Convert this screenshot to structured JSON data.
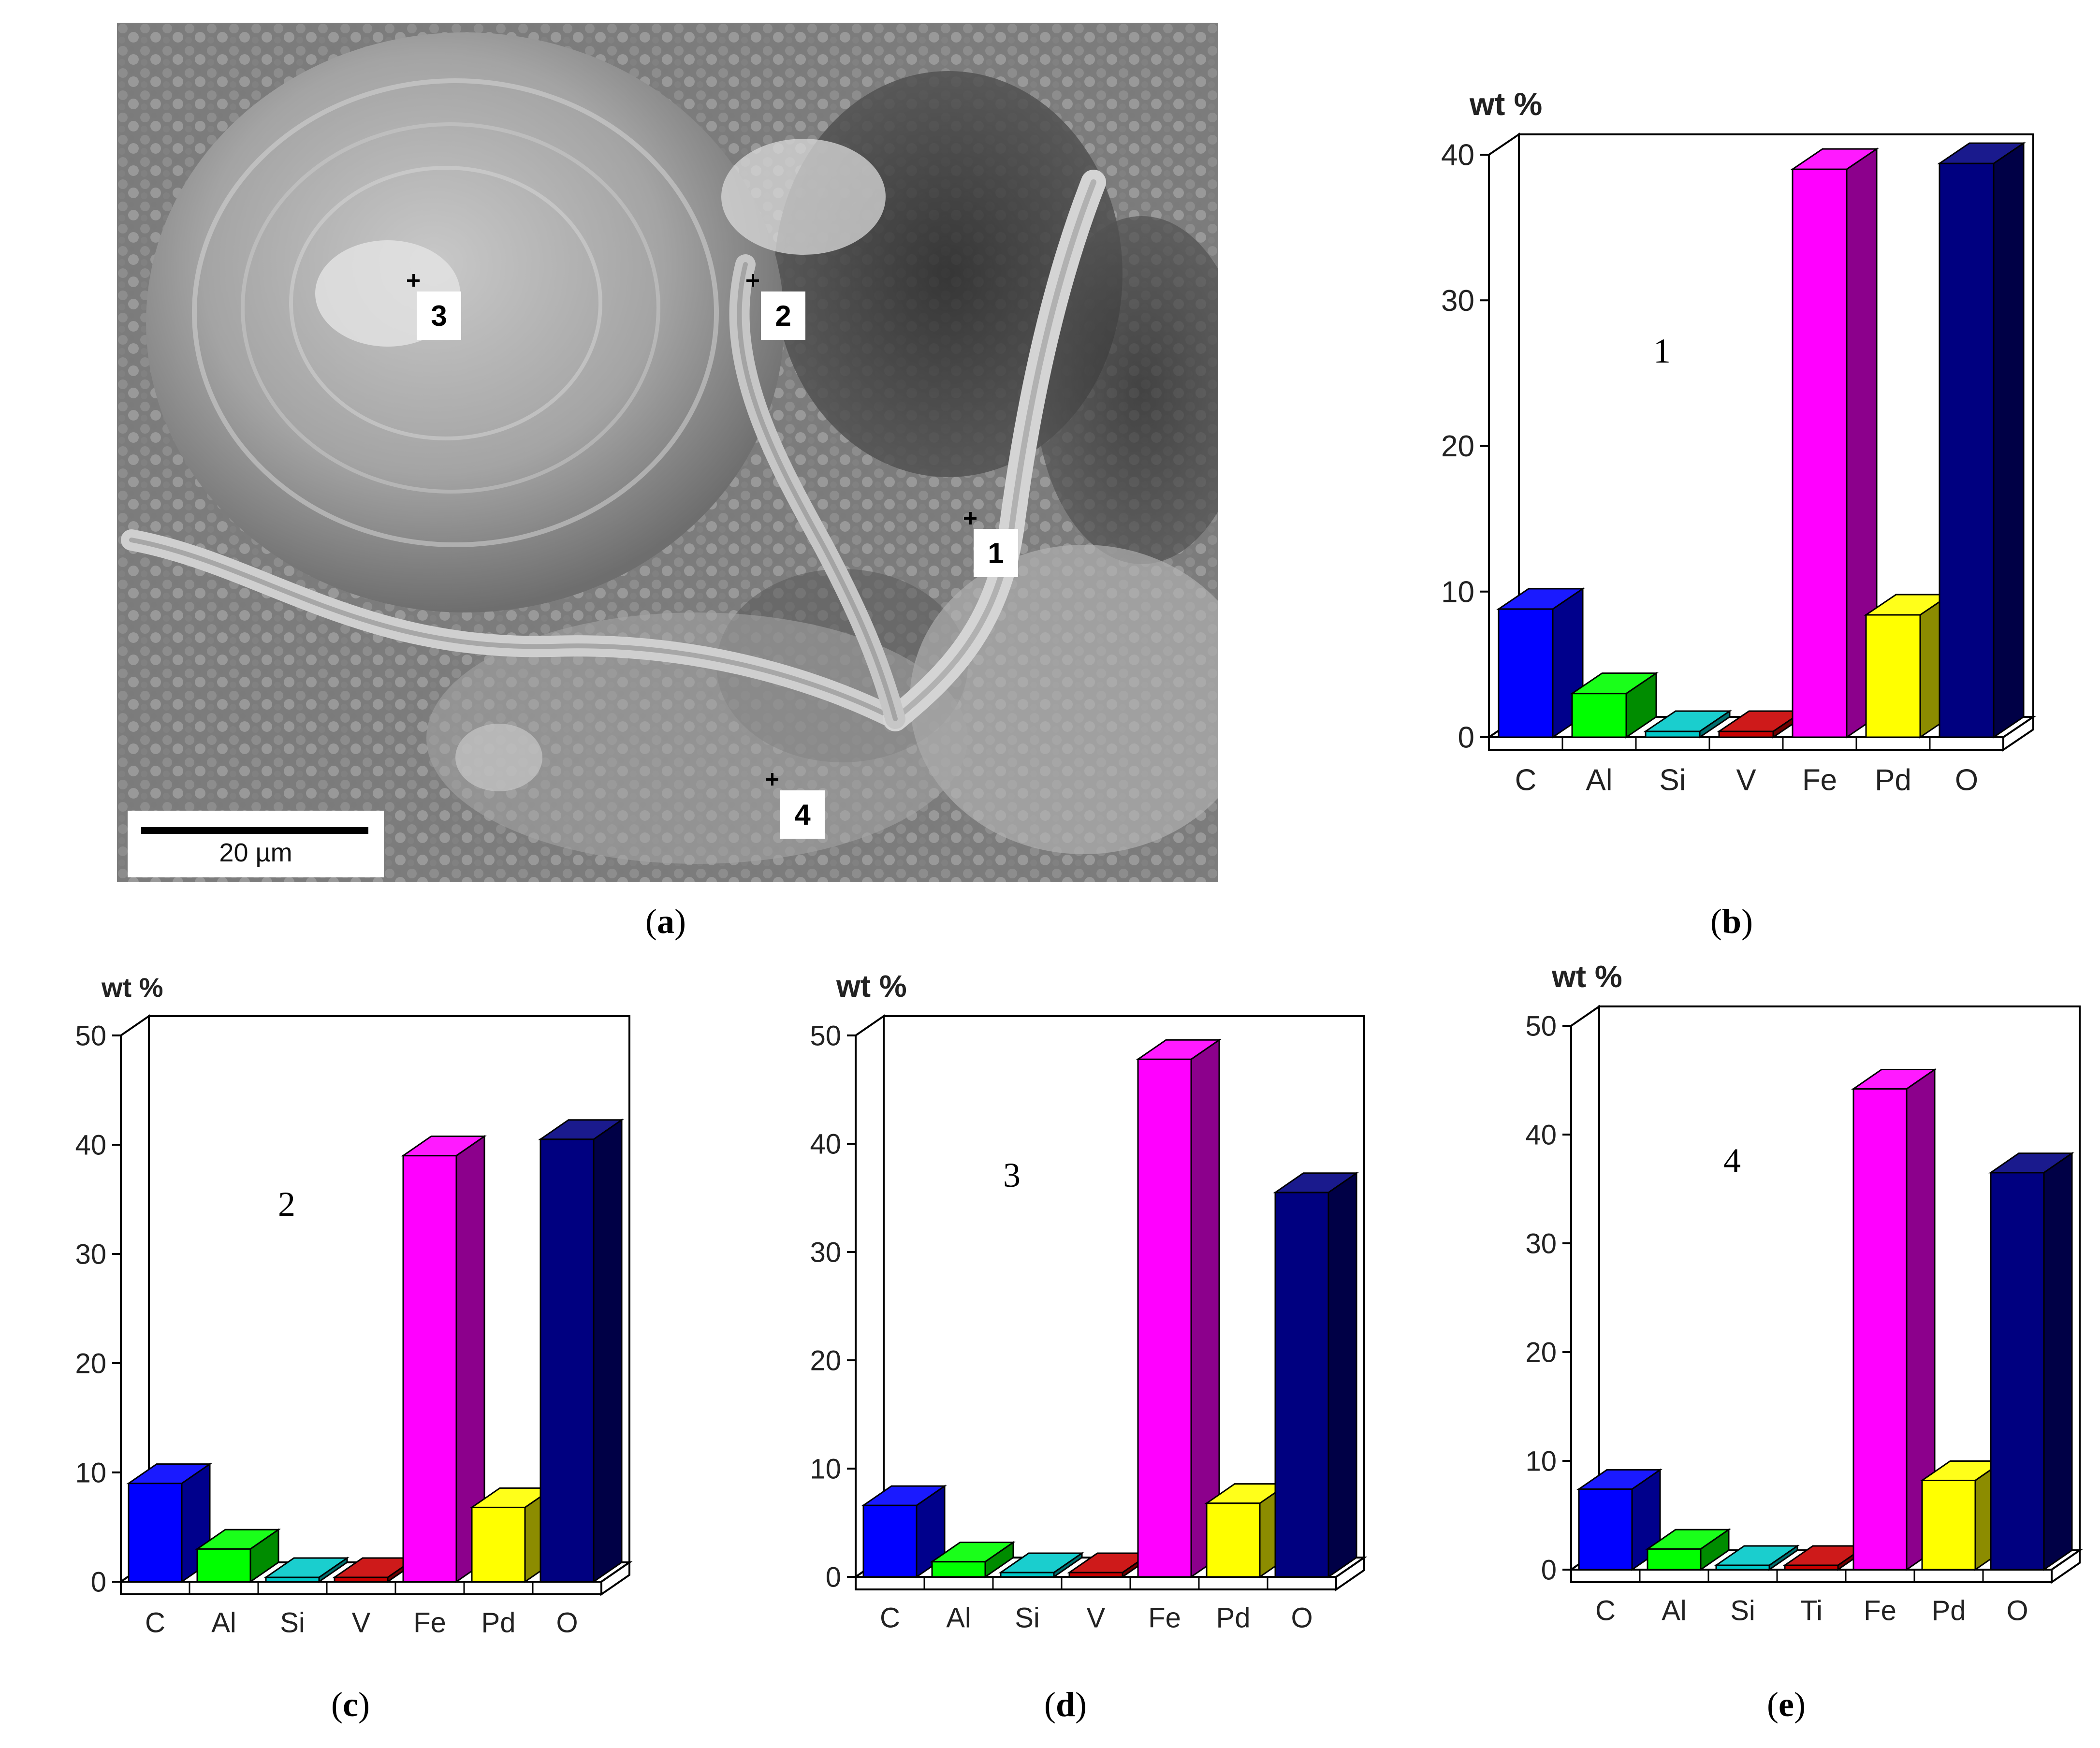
{
  "figure": {
    "panel_labels": [
      "a",
      "b",
      "c",
      "d",
      "e"
    ],
    "sem_image": {
      "scale_bar_label": "20 µm",
      "markers": [
        "1",
        "2",
        "3",
        "4"
      ]
    }
  },
  "chart_data": [
    {
      "panel": "b",
      "type": "bar",
      "ylabel": "wt %",
      "annotation": "1",
      "ylim": [
        0,
        40
      ],
      "yticks": [
        0,
        10,
        20,
        30,
        40
      ],
      "categories": [
        "C",
        "Al",
        "Si",
        "V",
        "Fe",
        "Pd",
        "O"
      ],
      "values": [
        8.8,
        3.0,
        0.4,
        0.4,
        39.0,
        8.4,
        39.4
      ],
      "colors": [
        "#0000ff",
        "#00ff00",
        "#00c8c8",
        "#c80000",
        "#ff00ff",
        "#ffff00",
        "#000080"
      ]
    },
    {
      "panel": "c",
      "type": "bar",
      "ylabel": "wt %",
      "annotation": "2",
      "ylim": [
        0,
        50
      ],
      "yticks": [
        0,
        10,
        20,
        30,
        40,
        50
      ],
      "categories": [
        "C",
        "Al",
        "Si",
        "V",
        "Fe",
        "Pd",
        "O"
      ],
      "values": [
        9.0,
        3.0,
        0.4,
        0.4,
        39.0,
        6.8,
        40.5
      ],
      "colors": [
        "#0000ff",
        "#00ff00",
        "#00c8c8",
        "#c80000",
        "#ff00ff",
        "#ffff00",
        "#000080"
      ]
    },
    {
      "panel": "d",
      "type": "bar",
      "ylabel": "wt %",
      "annotation": "3",
      "ylim": [
        0,
        50
      ],
      "yticks": [
        0,
        10,
        20,
        30,
        40,
        50
      ],
      "categories": [
        "C",
        "Al",
        "Si",
        "V",
        "Fe",
        "Pd",
        "O"
      ],
      "values": [
        6.6,
        1.4,
        0.4,
        0.4,
        47.8,
        6.8,
        35.5
      ],
      "colors": [
        "#0000ff",
        "#00ff00",
        "#00c8c8",
        "#c80000",
        "#ff00ff",
        "#ffff00",
        "#000080"
      ]
    },
    {
      "panel": "e",
      "type": "bar",
      "ylabel": "wt %",
      "annotation": "4",
      "ylim": [
        0,
        50
      ],
      "yticks": [
        0,
        10,
        20,
        30,
        40,
        50
      ],
      "categories": [
        "C",
        "Al",
        "Si",
        "Ti",
        "Fe",
        "Pd",
        "O"
      ],
      "values": [
        7.4,
        1.9,
        0.4,
        0.4,
        44.2,
        8.2,
        36.5
      ],
      "colors": [
        "#0000ff",
        "#00ff00",
        "#00c8c8",
        "#c80000",
        "#ff00ff",
        "#ffff00",
        "#000080"
      ]
    }
  ]
}
